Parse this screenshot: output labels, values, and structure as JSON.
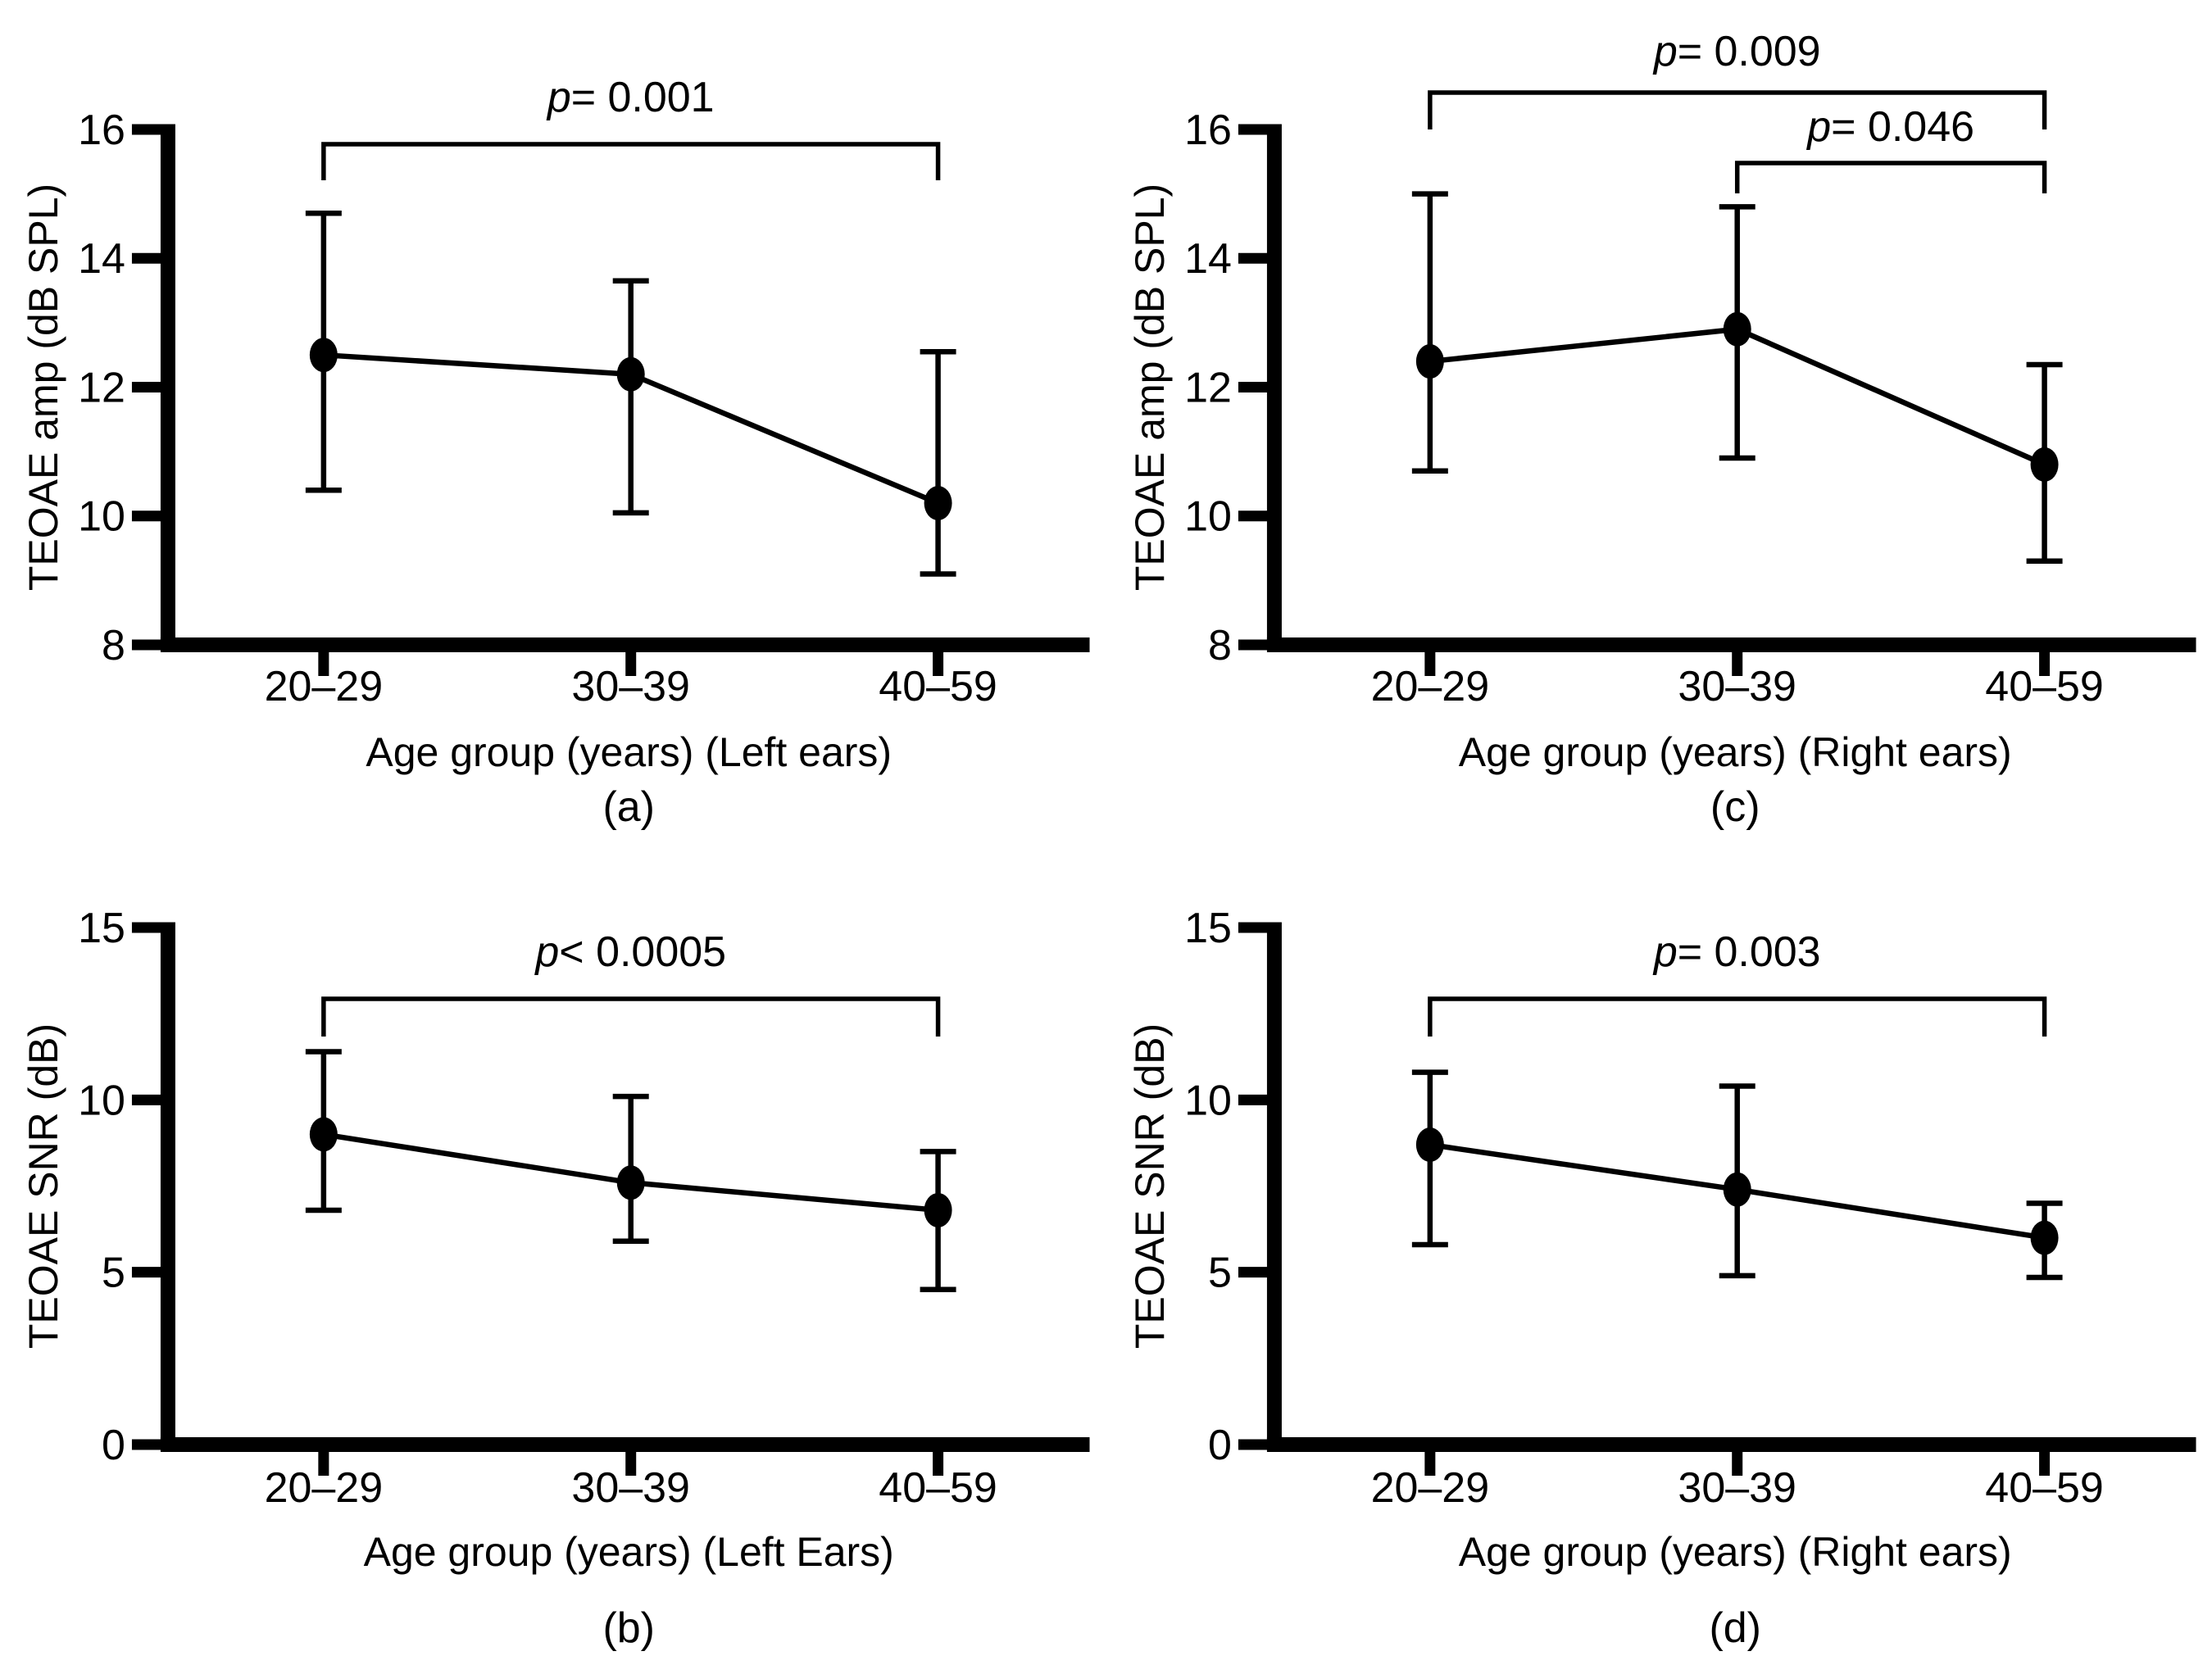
{
  "figure": {
    "background": "#ffffff",
    "ink": "#000000",
    "description": "Four-panel line chart figure of TEOAE measures by age group with SD error bars and significance brackets"
  },
  "chart_data": [
    {
      "id": "a",
      "type": "line",
      "grid_position": "top-left",
      "caption": "(a)",
      "ylabel": "TEOAE amp (dB SPL)",
      "xlabel": "Age group (years) (Left ears)",
      "ylim": [
        8,
        16
      ],
      "yticks": [
        8,
        10,
        12,
        14,
        16
      ],
      "categories": [
        "20–29",
        "30–39",
        "40–59"
      ],
      "series": [
        {
          "name": "mean",
          "values": [
            12.5,
            12.2,
            10.2
          ]
        }
      ],
      "error_low": [
        10.4,
        10.05,
        9.1
      ],
      "error_high": [
        14.7,
        13.65,
        12.55
      ],
      "significance_brackets": [
        {
          "from": 0,
          "to": 2,
          "label": "p= 0.001",
          "y_text": 136,
          "y_line": 176,
          "y_end": 220
        }
      ],
      "grid": "off",
      "legend": "none"
    },
    {
      "id": "c",
      "type": "line",
      "grid_position": "top-right",
      "caption": "(c)",
      "ylabel": "TEOAE amp (dB SPL)",
      "xlabel": "Age group (years) (Right ears)",
      "ylim": [
        8,
        16
      ],
      "yticks": [
        8,
        10,
        12,
        14,
        16
      ],
      "categories": [
        "20–29",
        "30–39",
        "40–59"
      ],
      "series": [
        {
          "name": "mean",
          "values": [
            12.4,
            12.9,
            10.8
          ]
        }
      ],
      "error_low": [
        10.7,
        10.9,
        9.3
      ],
      "error_high": [
        15.0,
        14.8,
        12.35
      ],
      "significance_brackets": [
        {
          "from": 0,
          "to": 2,
          "label": "p= 0.009",
          "y_text": 80,
          "y_line": 113,
          "y_end": 158
        },
        {
          "from": 1,
          "to": 2,
          "label": "p= 0.046",
          "y_text": 172,
          "y_line": 199,
          "y_end": 236
        }
      ],
      "grid": "off",
      "legend": "none"
    },
    {
      "id": "b",
      "type": "line",
      "grid_position": "bottom-left",
      "caption": "(b)",
      "ylabel": "TEOAE SNR (dB)",
      "xlabel": "Age group (years) (Left Ears)",
      "ylim": [
        0,
        15
      ],
      "yticks": [
        0,
        5,
        10,
        15
      ],
      "categories": [
        "20–29",
        "30–39",
        "40–59"
      ],
      "series": [
        {
          "name": "mean",
          "values": [
            9.0,
            7.6,
            6.8
          ]
        }
      ],
      "error_low": [
        6.8,
        5.9,
        4.5
      ],
      "error_high": [
        11.4,
        10.1,
        8.5
      ],
      "significance_brackets": [
        {
          "from": 0,
          "to": 2,
          "label": "p< 0.0005",
          "y_text": 163,
          "y_line": 203,
          "y_end": 249
        }
      ],
      "grid": "off",
      "legend": "none"
    },
    {
      "id": "d",
      "type": "line",
      "grid_position": "bottom-right",
      "caption": "(d)",
      "ylabel": "TEOAE SNR (dB)",
      "xlabel": "Age group (years) (Right ears)",
      "ylim": [
        0,
        15
      ],
      "yticks": [
        0,
        5,
        10,
        15
      ],
      "categories": [
        "20–29",
        "30–39",
        "40–59"
      ],
      "series": [
        {
          "name": "mean",
          "values": [
            8.7,
            7.4,
            6.0
          ]
        }
      ],
      "error_low": [
        5.8,
        4.9,
        4.85
      ],
      "error_high": [
        10.8,
        10.4,
        7.0
      ],
      "significance_brackets": [
        {
          "from": 0,
          "to": 2,
          "label": "p= 0.003",
          "y_text": 163,
          "y_line": 203,
          "y_end": 249
        }
      ],
      "grid": "off",
      "legend": "none"
    }
  ]
}
